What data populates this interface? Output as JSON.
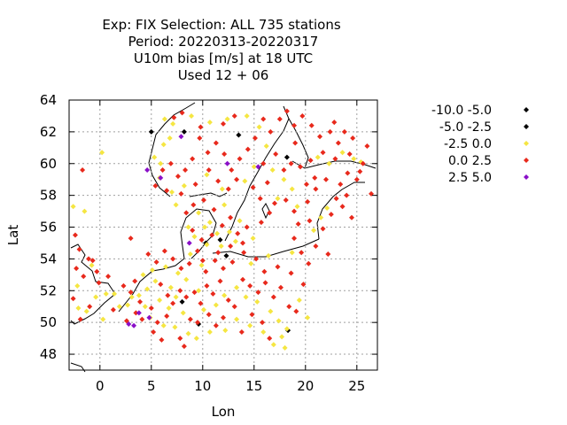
{
  "chart_data": {
    "type": "scatter",
    "title_lines": [
      "Exp: FIX   Selection: ALL    735 stations",
      "Period: 20220313-20220317",
      "U10m bias [m/s] at  18 UTC",
      "Used  12 + 06"
    ],
    "xlabel": "Lon",
    "ylabel": "Lat",
    "xlim": [
      -3,
      27
    ],
    "ylim": [
      47,
      64
    ],
    "xticks": [
      0,
      5,
      10,
      15,
      20,
      25
    ],
    "yticks": [
      48,
      50,
      52,
      54,
      56,
      58,
      60,
      62,
      64
    ],
    "grid": true,
    "legend_position": "right",
    "series": [
      {
        "name": "-10.0 -5.0",
        "color": "#000000",
        "points": [
          [
            8.2,
            62.0
          ]
        ]
      },
      {
        "name": "-5.0 -2.5",
        "color": "#000000",
        "points": [
          [
            5.0,
            62.0
          ],
          [
            18.2,
            60.4
          ],
          [
            13.5,
            61.8
          ],
          [
            9.6,
            49.9
          ],
          [
            10.3,
            55.0
          ],
          [
            12.3,
            54.2
          ],
          [
            18.3,
            49.5
          ],
          [
            11.7,
            55.2
          ],
          [
            8.0,
            51.3
          ]
        ]
      },
      {
        "name": "-2.5 0.0",
        "color": "#f5e642",
        "points": [
          [
            0.2,
            60.7
          ],
          [
            -2.6,
            57.3
          ],
          [
            -1.5,
            57.0
          ],
          [
            -2.2,
            52.3
          ],
          [
            -0.8,
            53.6
          ],
          [
            0.6,
            51.8
          ],
          [
            1.9,
            51.0
          ],
          [
            3.1,
            51.6
          ],
          [
            4.6,
            52.1
          ],
          [
            5.4,
            52.6
          ],
          [
            4.4,
            51.0
          ],
          [
            5.8,
            51.4
          ],
          [
            4.9,
            50.3
          ],
          [
            6.2,
            49.8
          ],
          [
            6.7,
            50.9
          ],
          [
            7.4,
            51.6
          ],
          [
            8.1,
            50.6
          ],
          [
            6.9,
            52.2
          ],
          [
            7.6,
            53.1
          ],
          [
            4.2,
            53.0
          ],
          [
            5.1,
            53.3
          ],
          [
            9.9,
            53.6
          ],
          [
            8.8,
            54.3
          ],
          [
            10.4,
            54.9
          ],
          [
            11.4,
            55.6
          ],
          [
            12.6,
            55.7
          ],
          [
            9.6,
            56.9
          ],
          [
            10.7,
            56.3
          ],
          [
            8.6,
            56.0
          ],
          [
            13.6,
            56.4
          ],
          [
            12.1,
            57.4
          ],
          [
            11.9,
            58.4
          ],
          [
            10.4,
            59.3
          ],
          [
            7.0,
            58.2
          ],
          [
            5.8,
            59.1
          ],
          [
            5.3,
            60.4
          ],
          [
            6.2,
            61.2
          ],
          [
            7.1,
            62.5
          ],
          [
            6.3,
            62.8
          ],
          [
            8.9,
            63.0
          ],
          [
            10.7,
            62.6
          ],
          [
            12.4,
            62.8
          ],
          [
            14.3,
            63.0
          ],
          [
            15.5,
            62.3
          ],
          [
            16.2,
            61.1
          ],
          [
            15.0,
            59.8
          ],
          [
            16.8,
            59.6
          ],
          [
            17.9,
            59.0
          ],
          [
            18.7,
            58.4
          ],
          [
            17.3,
            57.8
          ],
          [
            19.2,
            57.3
          ],
          [
            14.1,
            58.9
          ],
          [
            21.2,
            60.4
          ],
          [
            22.3,
            60.0
          ],
          [
            23.6,
            60.7
          ],
          [
            24.7,
            60.3
          ],
          [
            25.4,
            60.1
          ],
          [
            22.1,
            57.2
          ],
          [
            21.5,
            56.6
          ],
          [
            20.8,
            55.8
          ],
          [
            18.7,
            54.4
          ],
          [
            16.4,
            54.2
          ],
          [
            14.7,
            53.7
          ],
          [
            13.3,
            52.2
          ],
          [
            14.2,
            51.6
          ],
          [
            15.3,
            51.3
          ],
          [
            16.6,
            50.7
          ],
          [
            17.4,
            50.1
          ],
          [
            18.2,
            49.6
          ],
          [
            17.7,
            49.1
          ],
          [
            16.9,
            48.6
          ],
          [
            18.0,
            48.4
          ],
          [
            15.9,
            49.4
          ],
          [
            14.6,
            49.8
          ],
          [
            13.3,
            50.2
          ],
          [
            12.2,
            49.5
          ],
          [
            10.7,
            49.4
          ],
          [
            9.4,
            49.0
          ],
          [
            8.6,
            49.3
          ],
          [
            7.3,
            49.7
          ],
          [
            10.1,
            50.8
          ],
          [
            11.3,
            51.1
          ],
          [
            12.1,
            51.7
          ],
          [
            9.6,
            52.0
          ],
          [
            8.4,
            52.7
          ],
          [
            6.4,
            53.5
          ],
          [
            3.8,
            51.7
          ],
          [
            2.7,
            51.1
          ],
          [
            1.4,
            51.8
          ],
          [
            -0.4,
            51.6
          ],
          [
            -1.3,
            50.7
          ],
          [
            0.3,
            50.2
          ],
          [
            -2.1,
            50.9
          ],
          [
            11.8,
            54.8
          ],
          [
            13.2,
            55.1
          ],
          [
            14.9,
            55.3
          ],
          [
            9.2,
            55.4
          ],
          [
            10.2,
            56.0
          ],
          [
            7.4,
            57.4
          ],
          [
            8.2,
            58.6
          ],
          [
            6.8,
            61.6
          ],
          [
            5.9,
            60.0
          ],
          [
            19.4,
            51.4
          ],
          [
            20.2,
            50.3
          ]
        ]
      },
      {
        "name": "0.0 2.5",
        "color": "#e8291c",
        "points": [
          [
            -1.7,
            59.6
          ],
          [
            -2.4,
            55.5
          ],
          [
            -2.0,
            54.6
          ],
          [
            -1.1,
            54.0
          ],
          [
            -0.3,
            53.2
          ],
          [
            -1.6,
            52.9
          ],
          [
            -2.6,
            51.5
          ],
          [
            -1.0,
            51.0
          ],
          [
            -0.1,
            52.5
          ],
          [
            0.8,
            52.9
          ],
          [
            1.3,
            50.8
          ],
          [
            2.3,
            52.3
          ],
          [
            3.4,
            52.6
          ],
          [
            3.9,
            51.3
          ],
          [
            4.1,
            50.2
          ],
          [
            5.0,
            50.9
          ],
          [
            5.6,
            50.0
          ],
          [
            6.5,
            50.4
          ],
          [
            7.1,
            51.2
          ],
          [
            7.8,
            52.0
          ],
          [
            8.4,
            51.6
          ],
          [
            9.2,
            51.9
          ],
          [
            9.8,
            51.2
          ],
          [
            10.4,
            52.3
          ],
          [
            11.0,
            51.8
          ],
          [
            11.7,
            52.6
          ],
          [
            12.5,
            51.4
          ],
          [
            13.1,
            51.0
          ],
          [
            13.9,
            52.7
          ],
          [
            14.6,
            52.3
          ],
          [
            15.4,
            51.9
          ],
          [
            16.1,
            52.5
          ],
          [
            16.9,
            51.6
          ],
          [
            17.6,
            52.2
          ],
          [
            18.4,
            51.0
          ],
          [
            19.1,
            50.7
          ],
          [
            19.8,
            52.4
          ],
          [
            18.6,
            53.1
          ],
          [
            17.3,
            53.5
          ],
          [
            16.0,
            53.2
          ],
          [
            15.2,
            54.0
          ],
          [
            14.0,
            54.4
          ],
          [
            12.9,
            53.8
          ],
          [
            12.0,
            53.4
          ],
          [
            11.2,
            53.9
          ],
          [
            10.3,
            53.2
          ],
          [
            9.5,
            54.5
          ],
          [
            8.7,
            53.7
          ],
          [
            7.9,
            53.4
          ],
          [
            7.1,
            54.0
          ],
          [
            6.3,
            54.5
          ],
          [
            5.5,
            53.8
          ],
          [
            4.7,
            54.3
          ],
          [
            3.0,
            55.3
          ],
          [
            9.0,
            55.8
          ],
          [
            9.9,
            55.2
          ],
          [
            10.9,
            55.5
          ],
          [
            11.9,
            56.1
          ],
          [
            12.7,
            56.6
          ],
          [
            13.4,
            55.6
          ],
          [
            14.3,
            56.0
          ],
          [
            15.7,
            56.3
          ],
          [
            16.5,
            56.9
          ],
          [
            17.0,
            57.5
          ],
          [
            18.1,
            57.7
          ],
          [
            18.9,
            57.0
          ],
          [
            20.2,
            57.6
          ],
          [
            21.0,
            58.4
          ],
          [
            22.0,
            59.0
          ],
          [
            23.4,
            58.7
          ],
          [
            24.1,
            59.4
          ],
          [
            25.0,
            59.0
          ],
          [
            26.0,
            61.1
          ],
          [
            24.6,
            61.6
          ],
          [
            23.2,
            61.3
          ],
          [
            22.4,
            62.0
          ],
          [
            21.4,
            61.7
          ],
          [
            20.6,
            62.4
          ],
          [
            19.7,
            63.0
          ],
          [
            18.9,
            62.4
          ],
          [
            17.5,
            62.8
          ],
          [
            16.6,
            62.0
          ],
          [
            15.1,
            61.6
          ],
          [
            14.4,
            60.9
          ],
          [
            13.6,
            60.3
          ],
          [
            12.8,
            59.6
          ],
          [
            12.1,
            60.6
          ],
          [
            11.3,
            61.3
          ],
          [
            10.5,
            60.7
          ],
          [
            9.7,
            61.6
          ],
          [
            9.0,
            60.3
          ],
          [
            8.3,
            59.6
          ],
          [
            7.6,
            59.2
          ],
          [
            6.9,
            60.0
          ],
          [
            6.1,
            59.6
          ],
          [
            5.4,
            58.6
          ],
          [
            6.5,
            58.3
          ],
          [
            7.9,
            58.1
          ],
          [
            9.3,
            58.7
          ],
          [
            10.6,
            59.6
          ],
          [
            11.5,
            58.9
          ],
          [
            12.5,
            58.4
          ],
          [
            13.3,
            59.0
          ],
          [
            14.9,
            58.5
          ],
          [
            15.6,
            57.8
          ],
          [
            16.3,
            58.8
          ],
          [
            17.9,
            59.6
          ],
          [
            18.6,
            60.0
          ],
          [
            19.5,
            59.8
          ],
          [
            20.5,
            60.2
          ],
          [
            21.7,
            60.7
          ],
          [
            22.9,
            60.3
          ],
          [
            24.3,
            60.6
          ],
          [
            25.3,
            59.5
          ],
          [
            23.0,
            57.8
          ],
          [
            22.5,
            56.8
          ],
          [
            21.7,
            55.9
          ],
          [
            21.0,
            54.8
          ],
          [
            22.2,
            54.3
          ],
          [
            20.3,
            53.7
          ],
          [
            19.6,
            54.4
          ],
          [
            18.9,
            55.3
          ],
          [
            19.3,
            56.2
          ],
          [
            20.4,
            56.4
          ],
          [
            23.6,
            57.3
          ],
          [
            24.5,
            56.6
          ],
          [
            13.8,
            49.4
          ],
          [
            14.8,
            50.5
          ],
          [
            15.8,
            50.0
          ],
          [
            16.5,
            49.0
          ],
          [
            12.0,
            50.3
          ],
          [
            11.3,
            49.8
          ],
          [
            10.6,
            50.5
          ],
          [
            9.5,
            50.0
          ],
          [
            8.8,
            50.2
          ],
          [
            7.8,
            49.0
          ],
          [
            8.2,
            48.5
          ],
          [
            6.0,
            48.9
          ],
          [
            5.2,
            49.4
          ],
          [
            3.5,
            50.6
          ],
          [
            2.6,
            50.1
          ],
          [
            3.0,
            51.9
          ],
          [
            -0.7,
            53.9
          ],
          [
            -2.3,
            53.4
          ],
          [
            -1.9,
            50.2
          ],
          [
            5.9,
            52.4
          ],
          [
            6.6,
            51.7
          ],
          [
            10.0,
            53.9
          ],
          [
            11.5,
            54.4
          ],
          [
            12.7,
            54.8
          ],
          [
            13.9,
            55.0
          ],
          [
            8.4,
            56.9
          ],
          [
            9.1,
            57.4
          ],
          [
            10.1,
            57.7
          ],
          [
            11.1,
            57.1
          ],
          [
            7.2,
            62.9
          ],
          [
            8.0,
            63.2
          ],
          [
            9.8,
            62.3
          ],
          [
            12.0,
            62.5
          ],
          [
            13.1,
            63.0
          ],
          [
            15.9,
            62.8
          ],
          [
            18.2,
            63.3
          ],
          [
            20.9,
            59.1
          ],
          [
            17.1,
            60.6
          ],
          [
            15.9,
            60.0
          ],
          [
            24.0,
            58.0
          ],
          [
            25.6,
            60.0
          ],
          [
            26.4,
            58.1
          ],
          [
            20.1,
            58.7
          ],
          [
            19.0,
            61.3
          ],
          [
            22.8,
            62.6
          ],
          [
            23.8,
            62.0
          ]
        ]
      },
      {
        "name": "2.5 5.0",
        "color": "#8a0fc8",
        "points": [
          [
            7.9,
            61.7
          ],
          [
            5.9,
            59.1
          ],
          [
            4.6,
            59.6
          ],
          [
            8.7,
            55.0
          ],
          [
            2.8,
            49.9
          ],
          [
            3.3,
            49.8
          ],
          [
            3.8,
            50.6
          ],
          [
            4.8,
            50.3
          ],
          [
            15.4,
            59.8
          ],
          [
            12.4,
            60.0
          ]
        ]
      }
    ]
  }
}
